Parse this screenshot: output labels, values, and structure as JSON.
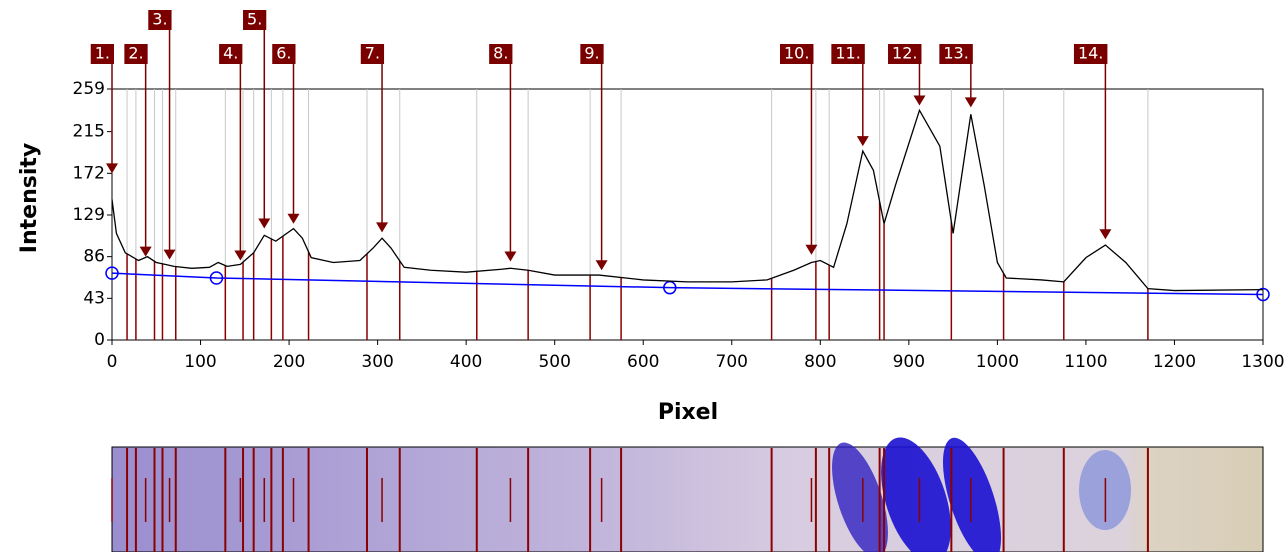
{
  "chart_data": {
    "type": "line",
    "xlabel": "Pixel",
    "ylabel": "Intensity",
    "xlim": [
      0,
      1300
    ],
    "ylim": [
      0,
      259
    ],
    "xticks": [
      0,
      100,
      200,
      300,
      400,
      500,
      600,
      700,
      800,
      900,
      1000,
      1100,
      1200,
      1300
    ],
    "yticks": [
      0,
      43,
      86,
      129,
      172,
      215,
      259
    ],
    "color": "#000000",
    "x": [
      0,
      5,
      15,
      30,
      40,
      50,
      60,
      70,
      90,
      110,
      120,
      130,
      145,
      160,
      172,
      185,
      205,
      215,
      225,
      250,
      280,
      295,
      305,
      315,
      330,
      360,
      400,
      440,
      450,
      470,
      500,
      550,
      600,
      650,
      700,
      740,
      770,
      790,
      800,
      815,
      830,
      848,
      860,
      872,
      885,
      912,
      935,
      950,
      970,
      985,
      1000,
      1010,
      1050,
      1075,
      1100,
      1122,
      1145,
      1170,
      1200,
      1300
    ],
    "values": [
      145,
      110,
      90,
      82,
      86,
      80,
      78,
      76,
      74,
      75,
      80,
      76,
      78,
      90,
      108,
      102,
      115,
      105,
      85,
      80,
      82,
      95,
      105,
      95,
      75,
      72,
      70,
      73,
      74,
      72,
      67,
      67,
      62,
      60,
      60,
      62,
      72,
      80,
      82,
      75,
      120,
      195,
      175,
      120,
      160,
      237,
      200,
      110,
      233,
      160,
      80,
      64,
      62,
      60,
      85,
      98,
      80,
      53,
      51,
      52
    ],
    "baseline": {
      "color": "#0000ff",
      "x": [
        0,
        118,
        630,
        1300
      ],
      "values": [
        69,
        64,
        54,
        47
      ]
    },
    "boundaries": [
      17,
      27,
      48,
      57,
      72,
      128,
      148,
      160,
      180,
      193,
      222,
      288,
      325,
      412,
      470,
      540,
      575,
      745,
      795,
      810,
      867,
      872,
      948,
      1007,
      1075,
      1170
    ],
    "peaks": {
      "color": "#7a0000",
      "labels": [
        "1.",
        "2.",
        "3.",
        "4.",
        "5.",
        "6.",
        "7.",
        "8.",
        "9.",
        "10.",
        "11.",
        "12.",
        "13.",
        "14."
      ],
      "x": [
        0,
        38,
        65,
        145,
        172,
        205,
        305,
        450,
        553,
        790,
        848,
        912,
        970,
        1122
      ],
      "values": [
        172,
        86,
        83,
        82,
        115,
        120,
        111,
        81,
        72,
        88,
        200,
        242,
        240,
        104
      ]
    }
  }
}
